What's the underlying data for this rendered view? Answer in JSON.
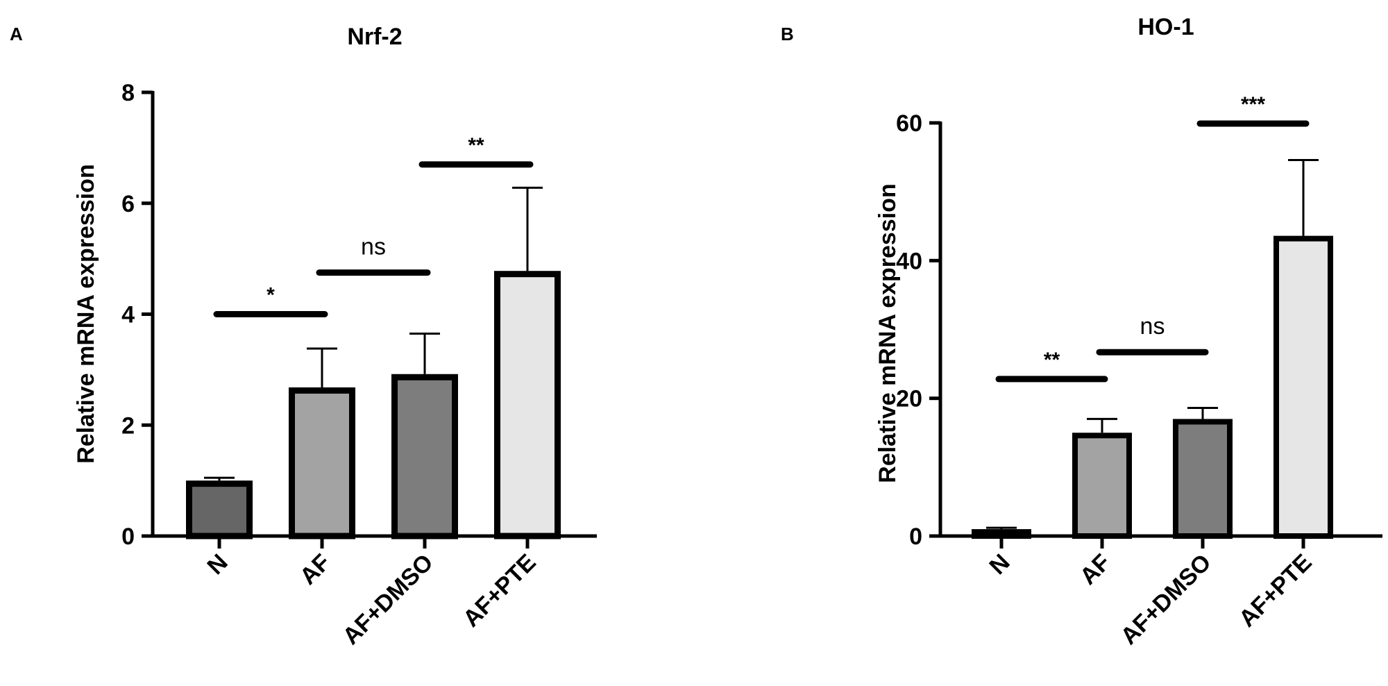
{
  "chart_data": [
    {
      "panel": "A",
      "type": "bar",
      "title": "Nrf-2",
      "ylabel": "Relative mRNA expression",
      "xlabel": "",
      "categories": [
        "N",
        "AF",
        "AF+DMSO",
        "AF+PTE"
      ],
      "values": [
        1.0,
        2.68,
        2.92,
        4.78
      ],
      "errors": [
        0.05,
        0.7,
        0.73,
        1.5
      ],
      "bar_colors": [
        "#666666",
        "#a3a3a3",
        "#7d7d7d",
        "#e6e6e6"
      ],
      "ylim": [
        0,
        8
      ],
      "yticks": [
        "0",
        "2",
        "4",
        "6",
        "8"
      ],
      "grid": false,
      "significance": [
        {
          "from": 0,
          "to": 1,
          "y": 4.0,
          "label": "*"
        },
        {
          "from": 1,
          "to": 2,
          "y": 4.75,
          "label": "ns"
        },
        {
          "from": 2,
          "to": 3,
          "y": 6.7,
          "label": "**"
        }
      ]
    },
    {
      "panel": "B",
      "type": "bar",
      "title": "HO-1",
      "ylabel": "Relative mRNA expression",
      "xlabel": "",
      "categories": [
        "N",
        "AF",
        "AF+DMSO",
        "AF+PTE"
      ],
      "values": [
        1.0,
        15.0,
        17.0,
        43.6
      ],
      "errors": [
        0.2,
        2.0,
        1.6,
        11.0
      ],
      "bar_colors": [
        "#666666",
        "#a3a3a3",
        "#7d7d7d",
        "#e6e6e6"
      ],
      "ylim": [
        0,
        60
      ],
      "yticks": [
        "0",
        "20",
        "40",
        "60"
      ],
      "grid": false,
      "significance": [
        {
          "from": 0,
          "to": 1,
          "y": 22.8,
          "label": "**"
        },
        {
          "from": 1,
          "to": 2,
          "y": 26.7,
          "label": "ns"
        },
        {
          "from": 2,
          "to": 3,
          "y": 59.9,
          "label": "***"
        }
      ]
    }
  ]
}
